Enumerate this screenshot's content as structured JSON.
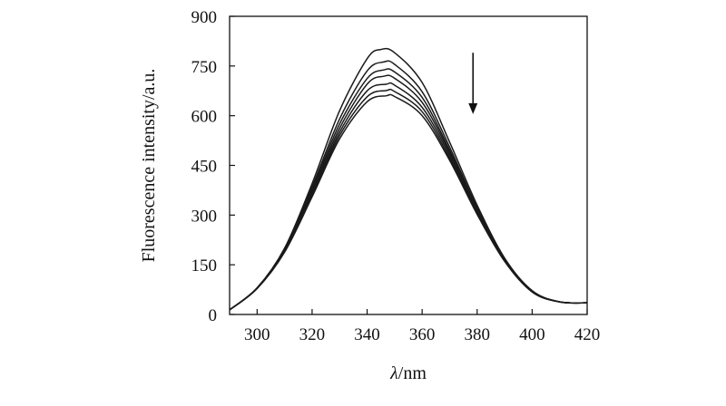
{
  "chart_data": {
    "type": "line",
    "xlabel_italic": "λ",
    "xlabel_rest": "/nm",
    "ylabel": "Fluorescence intensity/a.u.",
    "xlim": [
      290,
      420
    ],
    "ylim": [
      0,
      900
    ],
    "x_ticks": [
      300,
      320,
      340,
      360,
      380,
      400,
      420
    ],
    "y_ticks": [
      0,
      150,
      300,
      450,
      600,
      750,
      900
    ],
    "annotation": "downward arrow indicating fluorescence intensity decreasing across successive curves",
    "series": [
      {
        "peak_x": 345,
        "values": [
          [
            290,
            14
          ],
          [
            300,
            80
          ],
          [
            310,
            200
          ],
          [
            320,
            395
          ],
          [
            330,
            615
          ],
          [
            340,
            772
          ],
          [
            345,
            800
          ],
          [
            350,
            790
          ],
          [
            360,
            700
          ],
          [
            370,
            520
          ],
          [
            380,
            330
          ],
          [
            390,
            170
          ],
          [
            400,
            72
          ],
          [
            410,
            38
          ],
          [
            420,
            35
          ]
        ]
      },
      {
        "peak_x": 346,
        "values": [
          [
            290,
            14
          ],
          [
            300,
            80
          ],
          [
            310,
            198
          ],
          [
            320,
            385
          ],
          [
            330,
            590
          ],
          [
            340,
            735
          ],
          [
            346,
            762
          ],
          [
            350,
            755
          ],
          [
            360,
            672
          ],
          [
            370,
            505
          ],
          [
            380,
            322
          ],
          [
            390,
            168
          ],
          [
            400,
            70
          ],
          [
            410,
            38
          ],
          [
            420,
            35
          ]
        ]
      },
      {
        "peak_x": 346,
        "values": [
          [
            290,
            14
          ],
          [
            300,
            80
          ],
          [
            310,
            196
          ],
          [
            320,
            378
          ],
          [
            330,
            575
          ],
          [
            340,
            712
          ],
          [
            346,
            738
          ],
          [
            350,
            732
          ],
          [
            360,
            655
          ],
          [
            370,
            495
          ],
          [
            380,
            318
          ],
          [
            390,
            166
          ],
          [
            400,
            70
          ],
          [
            410,
            38
          ],
          [
            420,
            35
          ]
        ]
      },
      {
        "peak_x": 346,
        "values": [
          [
            290,
            14
          ],
          [
            300,
            79
          ],
          [
            310,
            194
          ],
          [
            320,
            372
          ],
          [
            330,
            562
          ],
          [
            340,
            695
          ],
          [
            346,
            719
          ],
          [
            350,
            713
          ],
          [
            360,
            640
          ],
          [
            370,
            488
          ],
          [
            380,
            314
          ],
          [
            390,
            165
          ],
          [
            400,
            69
          ],
          [
            410,
            38
          ],
          [
            420,
            35
          ]
        ]
      },
      {
        "peak_x": 347,
        "values": [
          [
            290,
            14
          ],
          [
            300,
            79
          ],
          [
            310,
            192
          ],
          [
            320,
            366
          ],
          [
            330,
            550
          ],
          [
            340,
            675
          ],
          [
            347,
            695
          ],
          [
            350,
            692
          ],
          [
            360,
            625
          ],
          [
            370,
            480
          ],
          [
            380,
            310
          ],
          [
            390,
            163
          ],
          [
            400,
            69
          ],
          [
            410,
            38
          ],
          [
            420,
            35
          ]
        ]
      },
      {
        "peak_x": 347,
        "values": [
          [
            290,
            14
          ],
          [
            300,
            79
          ],
          [
            310,
            190
          ],
          [
            320,
            360
          ],
          [
            330,
            540
          ],
          [
            340,
            657
          ],
          [
            347,
            676
          ],
          [
            350,
            673
          ],
          [
            360,
            612
          ],
          [
            370,
            472
          ],
          [
            380,
            306
          ],
          [
            390,
            162
          ],
          [
            400,
            68
          ],
          [
            410,
            38
          ],
          [
            420,
            35
          ]
        ]
      },
      {
        "peak_x": 347,
        "values": [
          [
            290,
            14
          ],
          [
            300,
            78
          ],
          [
            310,
            188
          ],
          [
            320,
            355
          ],
          [
            330,
            530
          ],
          [
            340,
            642
          ],
          [
            347,
            660
          ],
          [
            350,
            658
          ],
          [
            360,
            600
          ],
          [
            370,
            465
          ],
          [
            380,
            302
          ],
          [
            390,
            160
          ],
          [
            400,
            68
          ],
          [
            410,
            38
          ],
          [
            420,
            35
          ]
        ]
      }
    ]
  }
}
